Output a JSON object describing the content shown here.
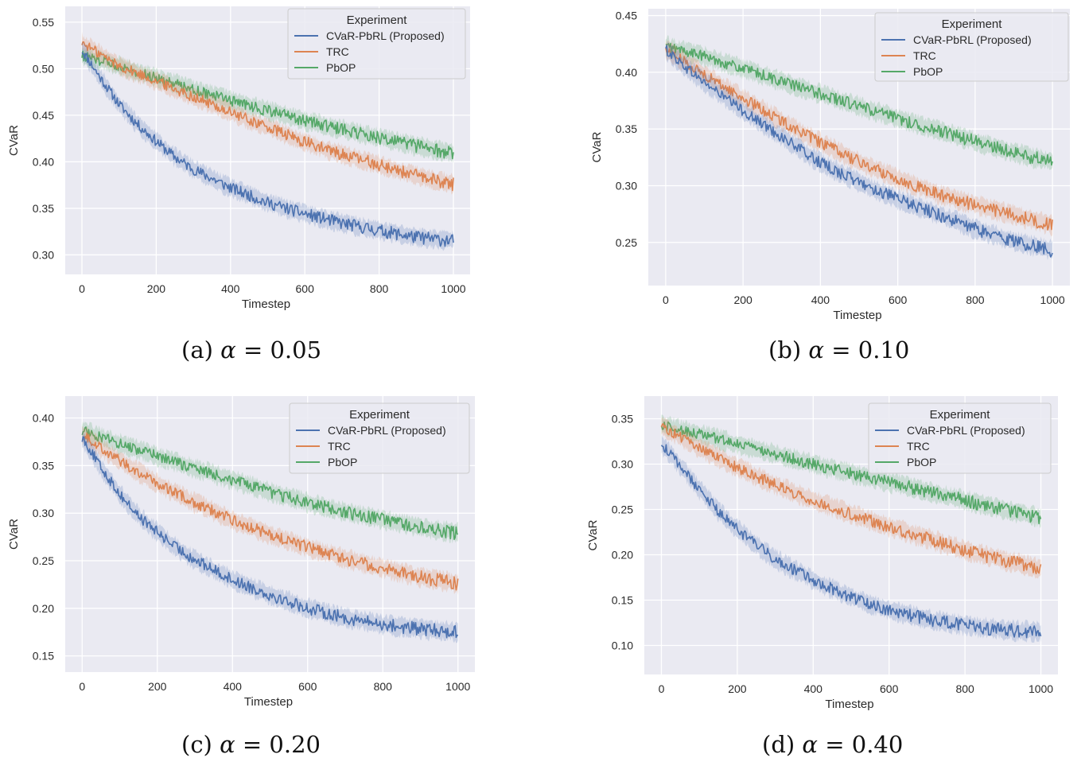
{
  "chart_data": [
    {
      "type": "line",
      "caption_prefix": "(a)",
      "caption_alpha": "α",
      "caption_value": "= 0.05",
      "xlabel": "Timestep",
      "ylabel": "CVaR",
      "xlim": [
        -45,
        1045
      ],
      "ylim": [
        0.279,
        0.567
      ],
      "xticks": [
        0,
        200,
        400,
        600,
        800,
        1000
      ],
      "yticks": [
        0.3,
        0.35,
        0.4,
        0.45,
        0.5,
        0.55
      ],
      "ytick_labels": [
        "0.30",
        "0.35",
        "0.40",
        "0.45",
        "0.50",
        "0.55"
      ],
      "grid": true,
      "legend": {
        "title": "Experiment",
        "position": "top-right"
      },
      "series": [
        {
          "name": "CVaR-PbRL (Proposed)",
          "color": "#4c72b0",
          "x": [
            0,
            50,
            100,
            150,
            200,
            250,
            300,
            400,
            500,
            600,
            700,
            800,
            900,
            1000
          ],
          "y": [
            0.52,
            0.49,
            0.462,
            0.44,
            0.422,
            0.405,
            0.392,
            0.372,
            0.356,
            0.344,
            0.334,
            0.326,
            0.319,
            0.315
          ]
        },
        {
          "name": "TRC",
          "color": "#dd8452",
          "x": [
            0,
            100,
            200,
            300,
            400,
            500,
            600,
            700,
            800,
            900,
            1000
          ],
          "y": [
            0.528,
            0.503,
            0.487,
            0.47,
            0.453,
            0.437,
            0.421,
            0.408,
            0.397,
            0.385,
            0.376
          ]
        },
        {
          "name": "PbOP",
          "color": "#55a868",
          "x": [
            0,
            100,
            200,
            300,
            400,
            500,
            600,
            700,
            800,
            900,
            1000
          ],
          "y": [
            0.514,
            0.503,
            0.49,
            0.478,
            0.466,
            0.455,
            0.444,
            0.435,
            0.426,
            0.417,
            0.409
          ]
        }
      ]
    },
    {
      "type": "line",
      "caption_prefix": "(b)",
      "caption_alpha": "α",
      "caption_value": "= 0.10",
      "xlabel": "Timestep",
      "ylabel": "CVaR",
      "xlim": [
        -45,
        1045
      ],
      "ylim": [
        0.212,
        0.456
      ],
      "xticks": [
        0,
        200,
        400,
        600,
        800,
        1000
      ],
      "yticks": [
        0.25,
        0.3,
        0.35,
        0.4,
        0.45
      ],
      "ytick_labels": [
        "0.25",
        "0.30",
        "0.35",
        "0.40",
        "0.45"
      ],
      "grid": true,
      "legend": {
        "title": "Experiment",
        "position": "top-right"
      },
      "series": [
        {
          "name": "CVaR-PbRL (Proposed)",
          "color": "#4c72b0",
          "x": [
            0,
            50,
            100,
            200,
            300,
            400,
            500,
            600,
            700,
            800,
            900,
            1000
          ],
          "y": [
            0.42,
            0.405,
            0.391,
            0.366,
            0.343,
            0.32,
            0.303,
            0.288,
            0.275,
            0.262,
            0.251,
            0.243
          ]
        },
        {
          "name": "TRC",
          "color": "#dd8452",
          "x": [
            0,
            100,
            200,
            300,
            400,
            500,
            600,
            700,
            800,
            900,
            1000
          ],
          "y": [
            0.42,
            0.398,
            0.377,
            0.357,
            0.338,
            0.321,
            0.306,
            0.293,
            0.283,
            0.274,
            0.265
          ]
        },
        {
          "name": "PbOP",
          "color": "#55a868",
          "x": [
            0,
            100,
            200,
            300,
            400,
            500,
            600,
            700,
            800,
            900,
            1000
          ],
          "y": [
            0.423,
            0.414,
            0.403,
            0.392,
            0.381,
            0.37,
            0.359,
            0.349,
            0.339,
            0.329,
            0.321
          ]
        }
      ]
    },
    {
      "type": "line",
      "caption_prefix": "(c)",
      "caption_alpha": "α",
      "caption_value": "= 0.20",
      "xlabel": "Timestep",
      "ylabel": "CVaR",
      "xlim": [
        -45,
        1045
      ],
      "ylim": [
        0.133,
        0.423
      ],
      "xticks": [
        0,
        200,
        400,
        600,
        800,
        1000
      ],
      "yticks": [
        0.15,
        0.2,
        0.25,
        0.3,
        0.35,
        0.4
      ],
      "ytick_labels": [
        "0.15",
        "0.20",
        "0.25",
        "0.30",
        "0.35",
        "0.40"
      ],
      "grid": true,
      "legend": {
        "title": "Experiment",
        "position": "top-right"
      },
      "series": [
        {
          "name": "CVaR-PbRL (Proposed)",
          "color": "#4c72b0",
          "x": [
            0,
            50,
            100,
            150,
            200,
            250,
            300,
            400,
            500,
            600,
            700,
            800,
            900,
            1000
          ],
          "y": [
            0.38,
            0.348,
            0.32,
            0.297,
            0.28,
            0.264,
            0.251,
            0.23,
            0.214,
            0.2,
            0.19,
            0.183,
            0.178,
            0.175
          ]
        },
        {
          "name": "TRC",
          "color": "#dd8452",
          "x": [
            0,
            100,
            200,
            300,
            400,
            500,
            600,
            700,
            800,
            900,
            1000
          ],
          "y": [
            0.383,
            0.355,
            0.331,
            0.311,
            0.293,
            0.277,
            0.264,
            0.252,
            0.242,
            0.233,
            0.226
          ]
        },
        {
          "name": "PbOP",
          "color": "#55a868",
          "x": [
            0,
            100,
            200,
            300,
            400,
            500,
            600,
            700,
            800,
            900,
            1000
          ],
          "y": [
            0.387,
            0.373,
            0.36,
            0.347,
            0.335,
            0.322,
            0.311,
            0.301,
            0.293,
            0.285,
            0.279
          ]
        }
      ]
    },
    {
      "type": "line",
      "caption_prefix": "(d)",
      "caption_alpha": "α",
      "caption_value": "= 0.40",
      "xlabel": "Timestep",
      "ylabel": "CVaR",
      "xlim": [
        -45,
        1045
      ],
      "ylim": [
        0.068,
        0.375
      ],
      "xticks": [
        0,
        200,
        400,
        600,
        800,
        1000
      ],
      "yticks": [
        0.1,
        0.15,
        0.2,
        0.25,
        0.3,
        0.35
      ],
      "ytick_labels": [
        "0.10",
        "0.15",
        "0.20",
        "0.25",
        "0.30",
        "0.35"
      ],
      "grid": true,
      "legend": {
        "title": "Experiment",
        "position": "top-right"
      },
      "series": [
        {
          "name": "CVaR-PbRL (Proposed)",
          "color": "#4c72b0",
          "x": [
            0,
            50,
            100,
            150,
            200,
            250,
            300,
            400,
            500,
            600,
            700,
            800,
            900,
            1000
          ],
          "y": [
            0.322,
            0.298,
            0.272,
            0.248,
            0.228,
            0.211,
            0.195,
            0.172,
            0.153,
            0.139,
            0.129,
            0.122,
            0.117,
            0.115
          ]
        },
        {
          "name": "TRC",
          "color": "#dd8452",
          "x": [
            0,
            100,
            200,
            300,
            400,
            500,
            600,
            700,
            800,
            900,
            1000
          ],
          "y": [
            0.342,
            0.318,
            0.296,
            0.277,
            0.26,
            0.245,
            0.231,
            0.218,
            0.205,
            0.194,
            0.185
          ]
        },
        {
          "name": "PbOP",
          "color": "#55a868",
          "x": [
            0,
            100,
            200,
            300,
            400,
            500,
            600,
            700,
            800,
            900,
            1000
          ],
          "y": [
            0.343,
            0.333,
            0.322,
            0.311,
            0.3,
            0.29,
            0.28,
            0.27,
            0.26,
            0.25,
            0.241
          ]
        }
      ]
    }
  ]
}
